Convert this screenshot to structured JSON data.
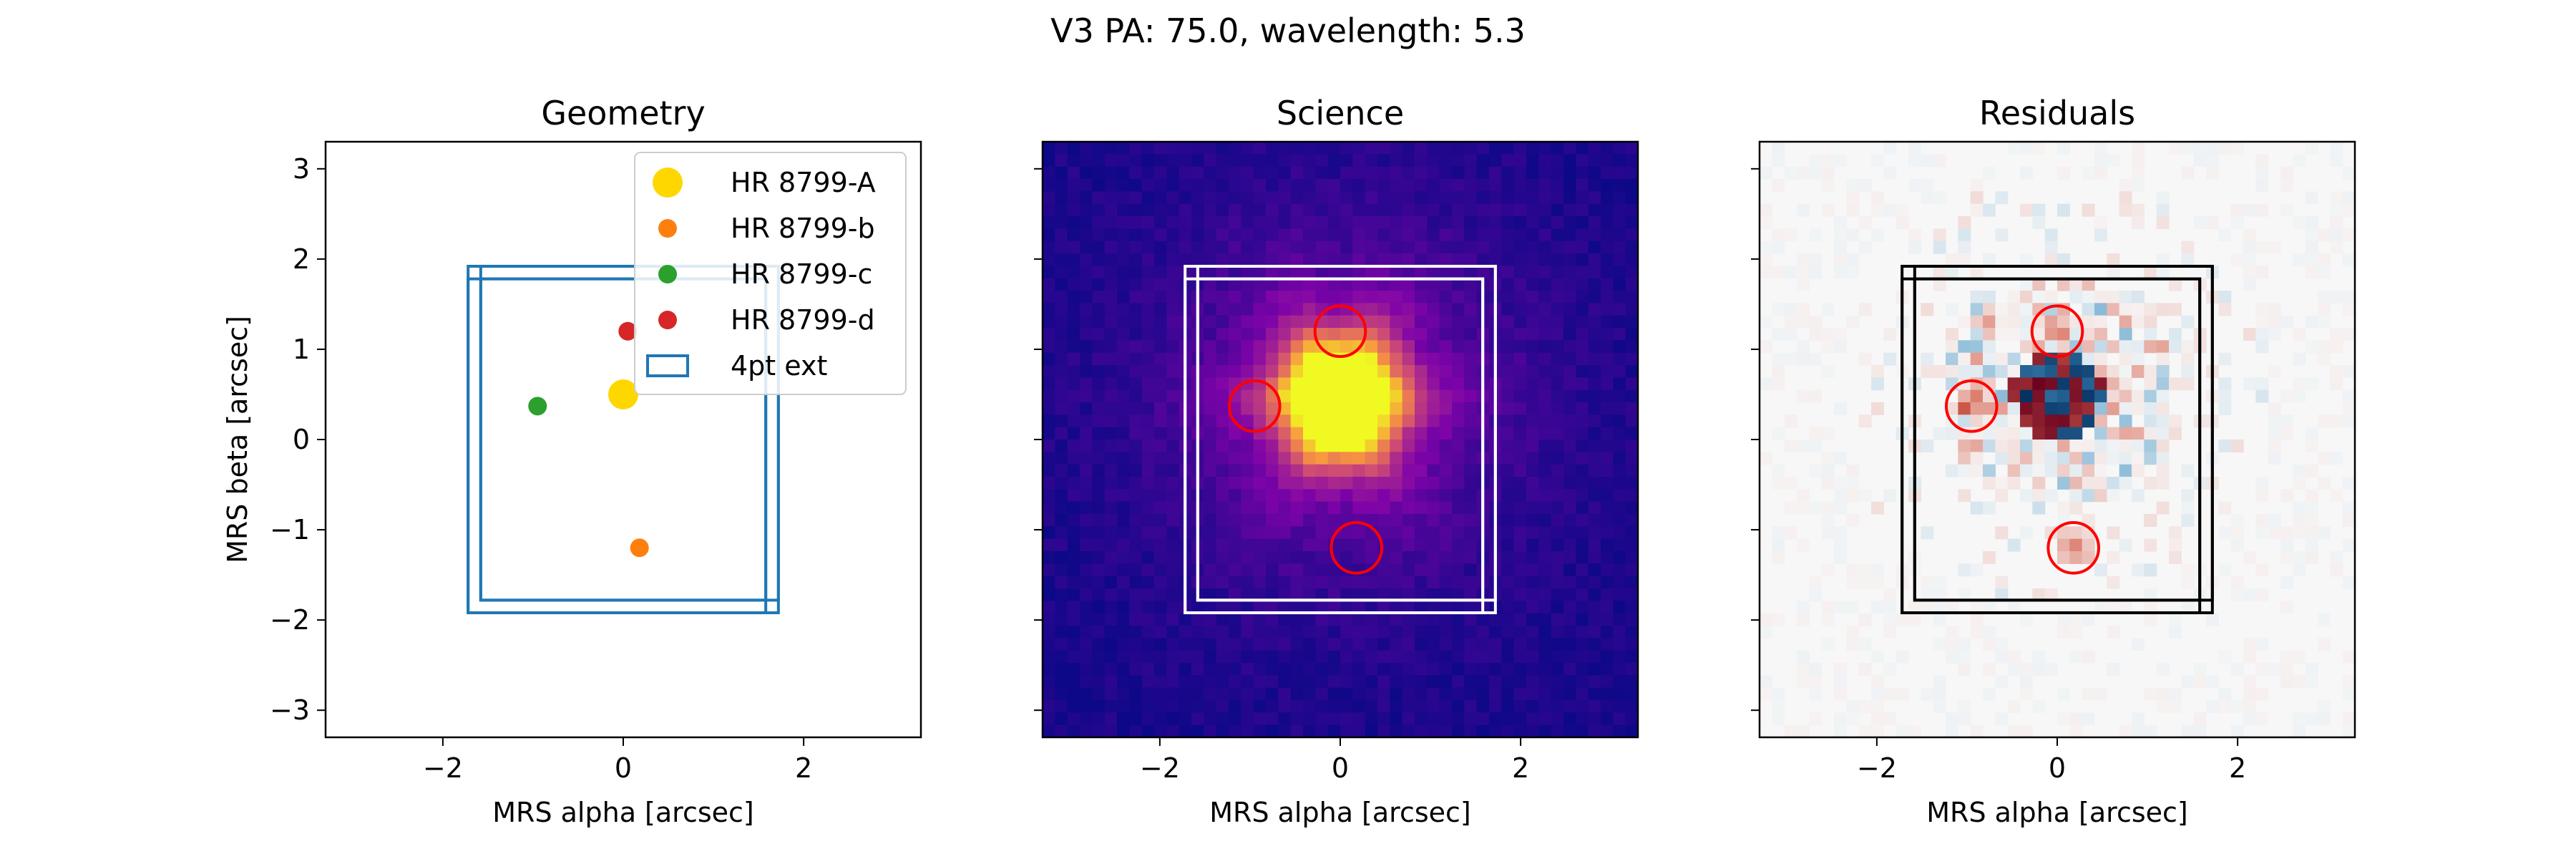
{
  "figure": {
    "title": "V3 PA: 75.0, wavelength: 5.3"
  },
  "colors": {
    "primary_A": "#FFD700",
    "planet_b": "#FF7F0E",
    "planet_c": "#2CA02C",
    "planet_d": "#D62728",
    "box": "#1F77B4",
    "aperture": "#FF0000"
  },
  "chart_data": [
    {
      "type": "scatter",
      "title": "Geometry",
      "xlabel": "MRS alpha [arcsec]",
      "ylabel": "MRS beta [arcsec]",
      "xlim": [
        -3.3,
        3.3
      ],
      "ylim": [
        -3.3,
        3.3
      ],
      "xticks": [
        -2,
        0,
        2
      ],
      "yticks": [
        -3,
        -2,
        -1,
        0,
        1,
        2,
        3
      ],
      "xtick_labels": [
        "−2",
        "0",
        "2"
      ],
      "ytick_labels": [
        "−3",
        "−2",
        "−1",
        "0",
        "1",
        "2",
        "3"
      ],
      "legend": "top-right",
      "points": [
        {
          "name": "HR 8799-A",
          "x": 0.0,
          "y": 0.5,
          "color": "#FFD700",
          "size": "large"
        },
        {
          "name": "HR 8799-b",
          "x": 0.18,
          "y": -1.2,
          "color": "#FF7F0E",
          "size": "small"
        },
        {
          "name": "HR 8799-c",
          "x": -0.95,
          "y": 0.37,
          "color": "#2CA02C",
          "size": "small"
        },
        {
          "name": "HR 8799-d",
          "x": 0.05,
          "y": 1.2,
          "color": "#D62728",
          "size": "small"
        }
      ],
      "rectangles": [
        {
          "name": "4pt ext",
          "x0": -1.72,
          "x1": 1.72,
          "y0": -1.92,
          "y1": 1.92
        },
        {
          "name": "4pt ext",
          "x0": -1.58,
          "x1": 1.58,
          "y0": -1.78,
          "y1": 1.78
        },
        {
          "name": "4pt ext",
          "x0": -1.72,
          "x1": 1.58,
          "y0": -1.92,
          "y1": 1.78
        },
        {
          "name": "4pt ext",
          "x0": -1.58,
          "x1": 1.72,
          "y0": -1.78,
          "y1": 1.92
        }
      ],
      "legend_entries": [
        {
          "label": "HR 8799-A",
          "marker": "circle-large",
          "color": "#FFD700"
        },
        {
          "label": "HR 8799-b",
          "marker": "circle",
          "color": "#FF7F0E"
        },
        {
          "label": "HR 8799-c",
          "marker": "circle",
          "color": "#2CA02C"
        },
        {
          "label": "HR 8799-d",
          "marker": "circle",
          "color": "#D62728"
        },
        {
          "label": "4pt ext",
          "marker": "rect",
          "color": "#1F77B4"
        }
      ]
    },
    {
      "type": "heatmap",
      "title": "Science",
      "xlabel": "MRS alpha [arcsec]",
      "ylabel": "",
      "xlim": [
        -3.3,
        3.3
      ],
      "ylim": [
        -3.3,
        3.3
      ],
      "xticks": [
        -2,
        0,
        2
      ],
      "yticks": [
        -3,
        -2,
        -1,
        0,
        1,
        2,
        3
      ],
      "xtick_labels": [
        "−2",
        "0",
        "2"
      ],
      "colormap": "plasma",
      "box_color": "#FFFFFF",
      "apertures": [
        {
          "x": 0.0,
          "y": 1.2,
          "r": 0.28
        },
        {
          "x": -0.95,
          "y": 0.37,
          "r": 0.28
        },
        {
          "x": 0.18,
          "y": -1.2,
          "r": 0.28
        }
      ]
    },
    {
      "type": "heatmap",
      "title": "Residuals",
      "xlabel": "MRS alpha [arcsec]",
      "ylabel": "",
      "xlim": [
        -3.3,
        3.3
      ],
      "ylim": [
        -3.3,
        3.3
      ],
      "xticks": [
        -2,
        0,
        2
      ],
      "yticks": [
        -3,
        -2,
        -1,
        0,
        1,
        2,
        3
      ],
      "xtick_labels": [
        "−2",
        "0",
        "2"
      ],
      "colormap": "RdBu_r",
      "box_color": "#000000",
      "apertures": [
        {
          "x": 0.0,
          "y": 1.2,
          "r": 0.28
        },
        {
          "x": -0.95,
          "y": 0.37,
          "r": 0.28
        },
        {
          "x": 0.18,
          "y": -1.2,
          "r": 0.28
        }
      ]
    }
  ]
}
